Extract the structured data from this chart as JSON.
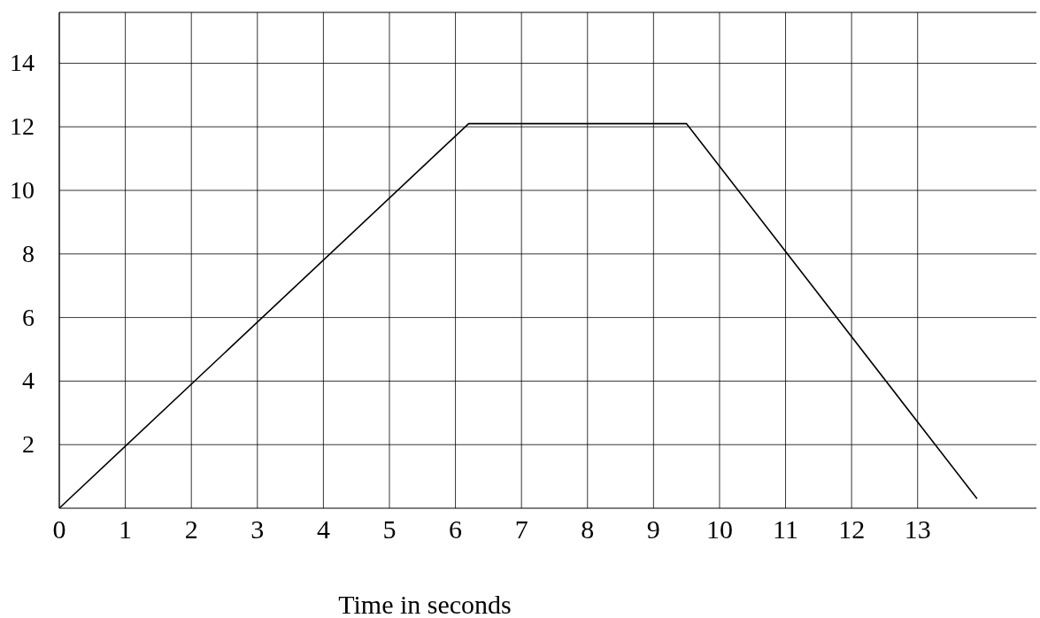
{
  "chart_data": {
    "type": "line",
    "xlabel": "Time in seconds",
    "x": [
      0,
      6.2,
      9.5,
      13.9
    ],
    "series": [
      {
        "color": "#000000",
        "values": [
          0,
          12.1,
          12.1,
          0.3
        ]
      }
    ],
    "xlim": [
      0,
      14.8
    ],
    "xticks": [
      0,
      1,
      2,
      3,
      4,
      5,
      6,
      7,
      8,
      9,
      10,
      11,
      12,
      13
    ],
    "ylim": [
      0,
      15.6
    ],
    "yticks": [
      2,
      4,
      6,
      8,
      10,
      12,
      14
    ],
    "grid": true,
    "marker": "none",
    "line_style": "solid"
  }
}
